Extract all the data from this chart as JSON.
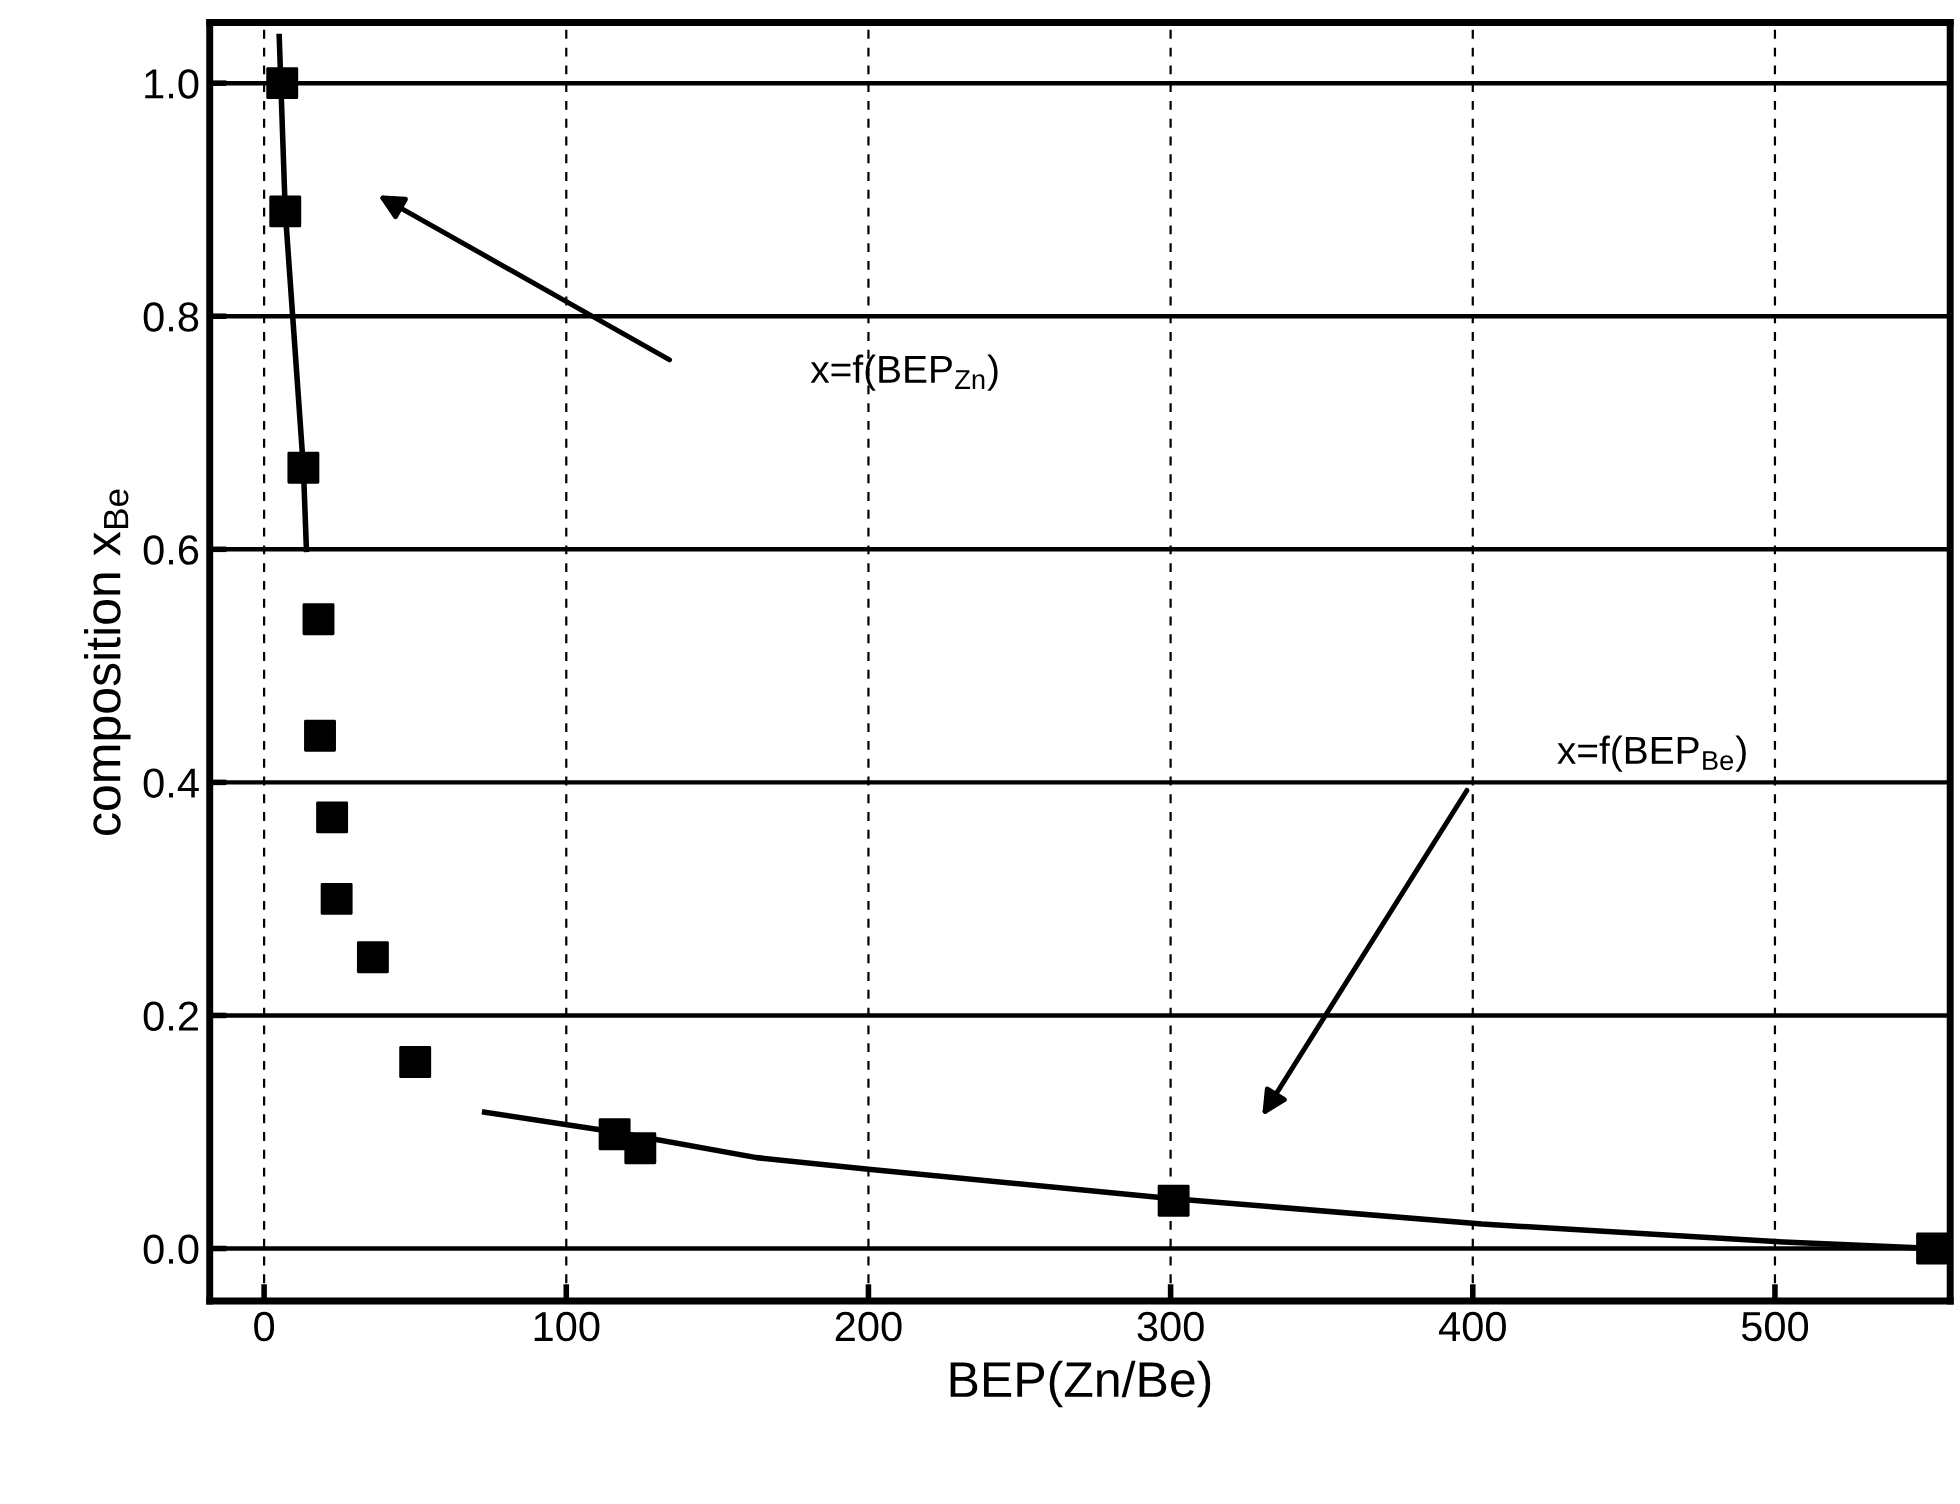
{
  "chart_data": {
    "type": "scatter",
    "xlabel": "BEP(Zn/Be)",
    "ylabel": "composition x$_{Be}$",
    "xlim": [
      -18,
      558
    ],
    "ylim": [
      -0.045,
      1.052
    ],
    "xticks": [
      0,
      100,
      200,
      300,
      400,
      500
    ],
    "yticks": [
      {
        "value": 0,
        "label": "0.0"
      },
      0.2,
      0.4,
      0.6,
      0.8,
      {
        "value": 1,
        "label": "1.0"
      }
    ],
    "grid": true,
    "marker": "square",
    "series": [
      {
        "color": "#000000",
        "x": [
          6,
          7,
          13,
          18,
          18.5,
          22.5,
          24,
          36,
          50,
          116,
          124.5,
          301,
          552
        ],
        "values": [
          1.0,
          0.89,
          0.67,
          0.54,
          0.44,
          0.37,
          0.3,
          0.25,
          0.16,
          0.098,
          0.086,
          0.041,
          0.0
        ]
      },
      {
        "type": "line",
        "color": "#000000",
        "marker": "none",
        "x": [
          5,
          7,
          13,
          14
        ],
        "values": [
          1.04,
          0.89,
          0.67,
          0.6
        ]
      },
      {
        "type": "line",
        "color": "#000000",
        "marker": "none",
        "x": [
          73,
          116,
          163,
          200,
          300,
          403,
          500,
          552
        ],
        "values": [
          0.117,
          0.1,
          0.078,
          0.068,
          0.043,
          0.021,
          0.006,
          0.0
        ]
      }
    ],
    "annotations": [
      "x=f(BEP$_{Zn}$)",
      "x=f(BEP$_{Be}$)"
    ]
  }
}
